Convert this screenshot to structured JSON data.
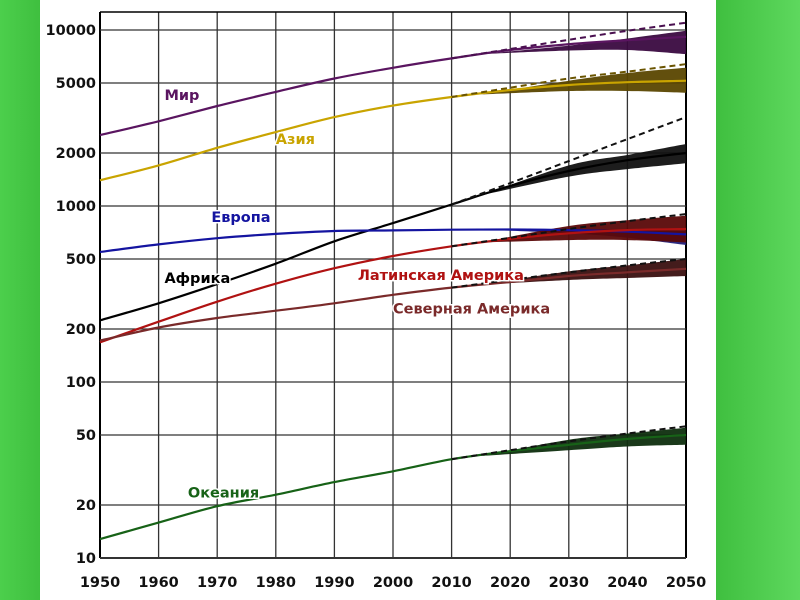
{
  "chart_data": {
    "type": "line",
    "title": "",
    "xlabel": "",
    "ylabel": "",
    "y_scale": "log",
    "xlim": [
      1950,
      2050
    ],
    "ylim": [
      10,
      12000
    ],
    "x_ticks": [
      "1950",
      "1960",
      "1970",
      "1980",
      "1990",
      "2000",
      "2010",
      "2020",
      "2030",
      "2040",
      "2050"
    ],
    "y_ticks": [
      {
        "value": 10,
        "label": "10"
      },
      {
        "value": 20,
        "label": "20"
      },
      {
        "value": 50,
        "label": "50"
      },
      {
        "value": 100,
        "label": "100"
      },
      {
        "value": 200,
        "label": "200"
      },
      {
        "value": 500,
        "label": "500"
      },
      {
        "value": 1000,
        "label": "1000"
      },
      {
        "value": 2000,
        "label": "2000"
      },
      {
        "value": 5000,
        "label": "5000"
      },
      {
        "value": 10000,
        "label": "10000"
      }
    ],
    "grid": true,
    "series": [
      {
        "key": "world",
        "name": "Мир",
        "color": "#5a1560",
        "x": [
          1950,
          1960,
          1970,
          1980,
          1990,
          2000,
          2010,
          2020,
          2030,
          2040,
          2050
        ],
        "values": [
          2530,
          3030,
          3700,
          4450,
          5300,
          6100,
          6900,
          7700,
          8300,
          8750,
          9150
        ],
        "band": {
          "from_year": 2015,
          "low": [
            7300,
            7650,
            7700,
            7300
          ],
          "high": [
            7300,
            8150,
            8950,
            9900
          ],
          "years": [
            2015,
            2030,
            2040,
            2050
          ]
        },
        "dashed": {
          "x": [
            2010,
            2020,
            2030,
            2040,
            2050
          ],
          "values": [
            6900,
            7800,
            8800,
            9900,
            11000
          ]
        }
      },
      {
        "key": "asia",
        "name": "Азия",
        "color": "#c9a400",
        "x": [
          1950,
          1960,
          1970,
          1980,
          1990,
          2000,
          2010,
          2020,
          2030,
          2040,
          2050
        ],
        "values": [
          1400,
          1700,
          2140,
          2630,
          3200,
          3720,
          4160,
          4560,
          4870,
          5050,
          5150
        ],
        "band": {
          "years": [
            2015,
            2030,
            2040,
            2050
          ],
          "low": [
            4300,
            4500,
            4500,
            4400
          ],
          "high": [
            4300,
            5150,
            5700,
            6100
          ]
        },
        "dashed": {
          "x": [
            2010,
            2020,
            2030,
            2040,
            2050
          ],
          "values": [
            4160,
            4700,
            5300,
            5800,
            6400
          ]
        }
      },
      {
        "key": "africa",
        "name": "Африка",
        "color": "#000000",
        "x": [
          1950,
          1960,
          1970,
          1980,
          1990,
          2000,
          2010,
          2020,
          2030,
          2040,
          2050
        ],
        "values": [
          224,
          280,
          360,
          470,
          630,
          800,
          1020,
          1300,
          1580,
          1820,
          2000
        ],
        "band": {
          "years": [
            2015,
            2030,
            2040,
            2050
          ],
          "low": [
            1150,
            1470,
            1620,
            1750
          ],
          "high": [
            1150,
            1700,
            1950,
            2250
          ]
        },
        "dashed": {
          "x": [
            2010,
            2020,
            2030,
            2040,
            2050
          ],
          "values": [
            1020,
            1350,
            1800,
            2400,
            3200
          ]
        }
      },
      {
        "key": "europe",
        "name": "Европа",
        "color": "#1414a0",
        "x": [
          1950,
          1960,
          1970,
          1980,
          1990,
          2000,
          2010,
          2020,
          2030,
          2040,
          2050
        ],
        "values": [
          548,
          605,
          656,
          694,
          721,
          727,
          733,
          735,
          730,
          715,
          690
        ],
        "band": {
          "years": [
            2015,
            2030,
            2040,
            2050
          ],
          "low": [
            735,
            700,
            660,
            600
          ],
          "high": [
            735,
            740,
            735,
            720
          ]
        },
        "dashed": null
      },
      {
        "key": "latam",
        "name": "Латинская Америка",
        "color": "#b01212",
        "x": [
          1950,
          1960,
          1970,
          1980,
          1990,
          2000,
          2010,
          2020,
          2030,
          2040,
          2050
        ],
        "values": [
          168,
          220,
          286,
          362,
          443,
          520,
          590,
          650,
          700,
          730,
          740
        ],
        "band": {
          "years": [
            2015,
            2030,
            2040,
            2050
          ],
          "low": [
            620,
            640,
            640,
            620
          ],
          "high": [
            620,
            770,
            830,
            880
          ]
        },
        "dashed": {
          "x": [
            2010,
            2020,
            2030,
            2040,
            2050
          ],
          "values": [
            590,
            660,
            740,
            820,
            900
          ]
        }
      },
      {
        "key": "namerica",
        "name": "Северная Америка",
        "color": "#7a2a2a",
        "x": [
          1950,
          1960,
          1970,
          1980,
          1990,
          2000,
          2010,
          2020,
          2030,
          2040,
          2050
        ],
        "values": [
          172,
          204,
          231,
          254,
          280,
          313,
          344,
          370,
          400,
          420,
          440
        ],
        "band": {
          "years": [
            2015,
            2030,
            2040,
            2050
          ],
          "low": [
            357,
            380,
            390,
            400
          ],
          "high": [
            357,
            425,
            460,
            500
          ]
        },
        "dashed": {
          "x": [
            2010,
            2020,
            2030,
            2040,
            2050
          ],
          "values": [
            344,
            380,
            420,
            460,
            500
          ]
        }
      },
      {
        "key": "oceania",
        "name": "Океания",
        "color": "#176217",
        "x": [
          1950,
          1960,
          1970,
          1980,
          1990,
          2000,
          2010,
          2020,
          2030,
          2040,
          2050
        ],
        "values": [
          12.8,
          15.9,
          19.7,
          22.9,
          27.0,
          31.1,
          36.4,
          40.5,
          44.0,
          47.5,
          50.0
        ],
        "band": {
          "years": [
            2015,
            2030,
            2040,
            2050
          ],
          "low": [
            38,
            41,
            43,
            44
          ],
          "high": [
            38,
            47,
            51,
            55
          ]
        },
        "dashed": {
          "x": [
            2010,
            2020,
            2030,
            2040,
            2050
          ],
          "values": [
            36.4,
            41,
            46,
            51,
            56
          ]
        }
      }
    ],
    "annotations": [
      {
        "series": "world",
        "text": "Мир",
        "color": "#5a1560",
        "at_x": 1961,
        "at_y": 4000
      },
      {
        "series": "asia",
        "text": "Азия",
        "color": "#c9a400",
        "at_x": 1980,
        "at_y": 2250
      },
      {
        "series": "europe",
        "text": "Европа",
        "color": "#1414a0",
        "at_x": 1969,
        "at_y": 810
      },
      {
        "series": "africa",
        "text": "Африка",
        "color": "#000000",
        "at_x": 1961,
        "at_y": 365
      },
      {
        "series": "latam",
        "text": "Латинская Америка",
        "color": "#b01212",
        "at_x": 1994,
        "at_y": 380
      },
      {
        "series": "namerica",
        "text": "Северная Америка",
        "color": "#7a2a2a",
        "at_x": 2000,
        "at_y": 245
      },
      {
        "series": "oceania",
        "text": "Океания",
        "color": "#176217",
        "at_x": 1965,
        "at_y": 22
      }
    ]
  }
}
